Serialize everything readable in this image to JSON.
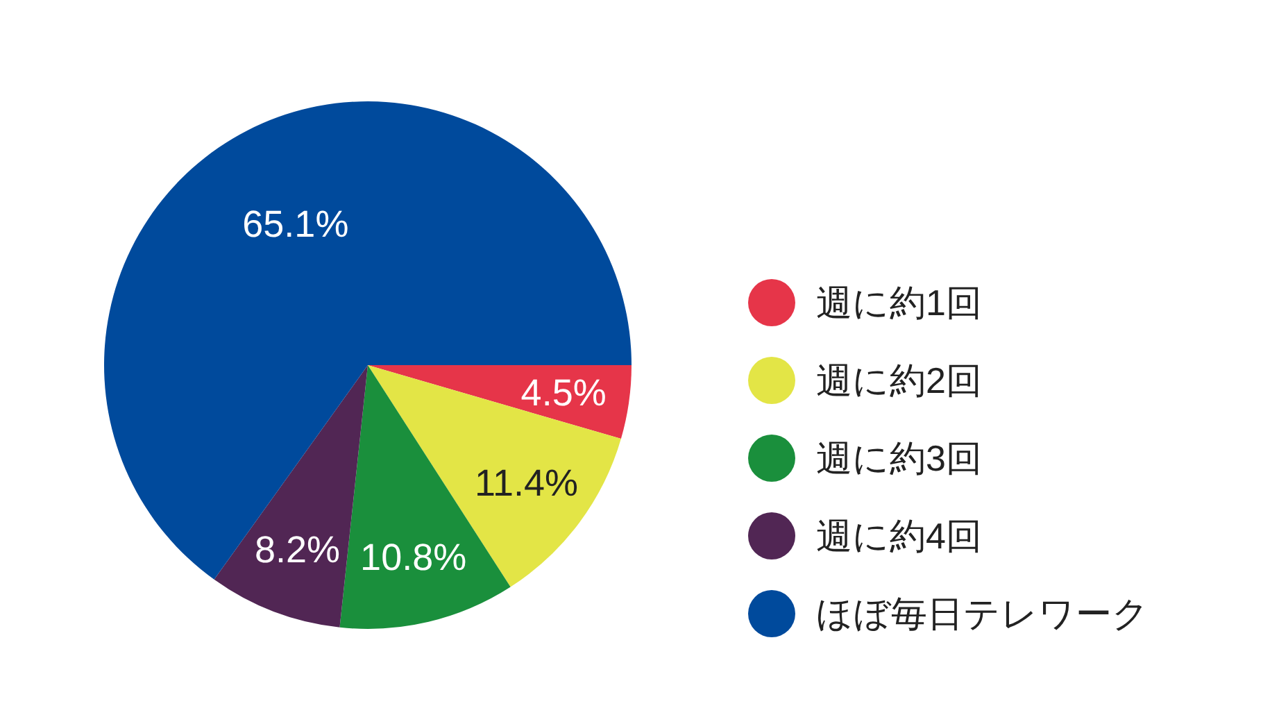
{
  "chart_data": {
    "type": "pie",
    "categories": [
      "週に約1回",
      "週に約2回",
      "週に約3回",
      "週に約4回",
      "ほぼ毎日テレワーク"
    ],
    "values": [
      4.5,
      11.4,
      10.8,
      8.2,
      65.1
    ],
    "colors": [
      "#e63549",
      "#e3e546",
      "#1a8f3c",
      "#512654",
      "#004a9c"
    ],
    "value_labels": [
      "4.5%",
      "11.4%",
      "10.8%",
      "8.2%",
      "65.1%"
    ],
    "legend": "right"
  }
}
